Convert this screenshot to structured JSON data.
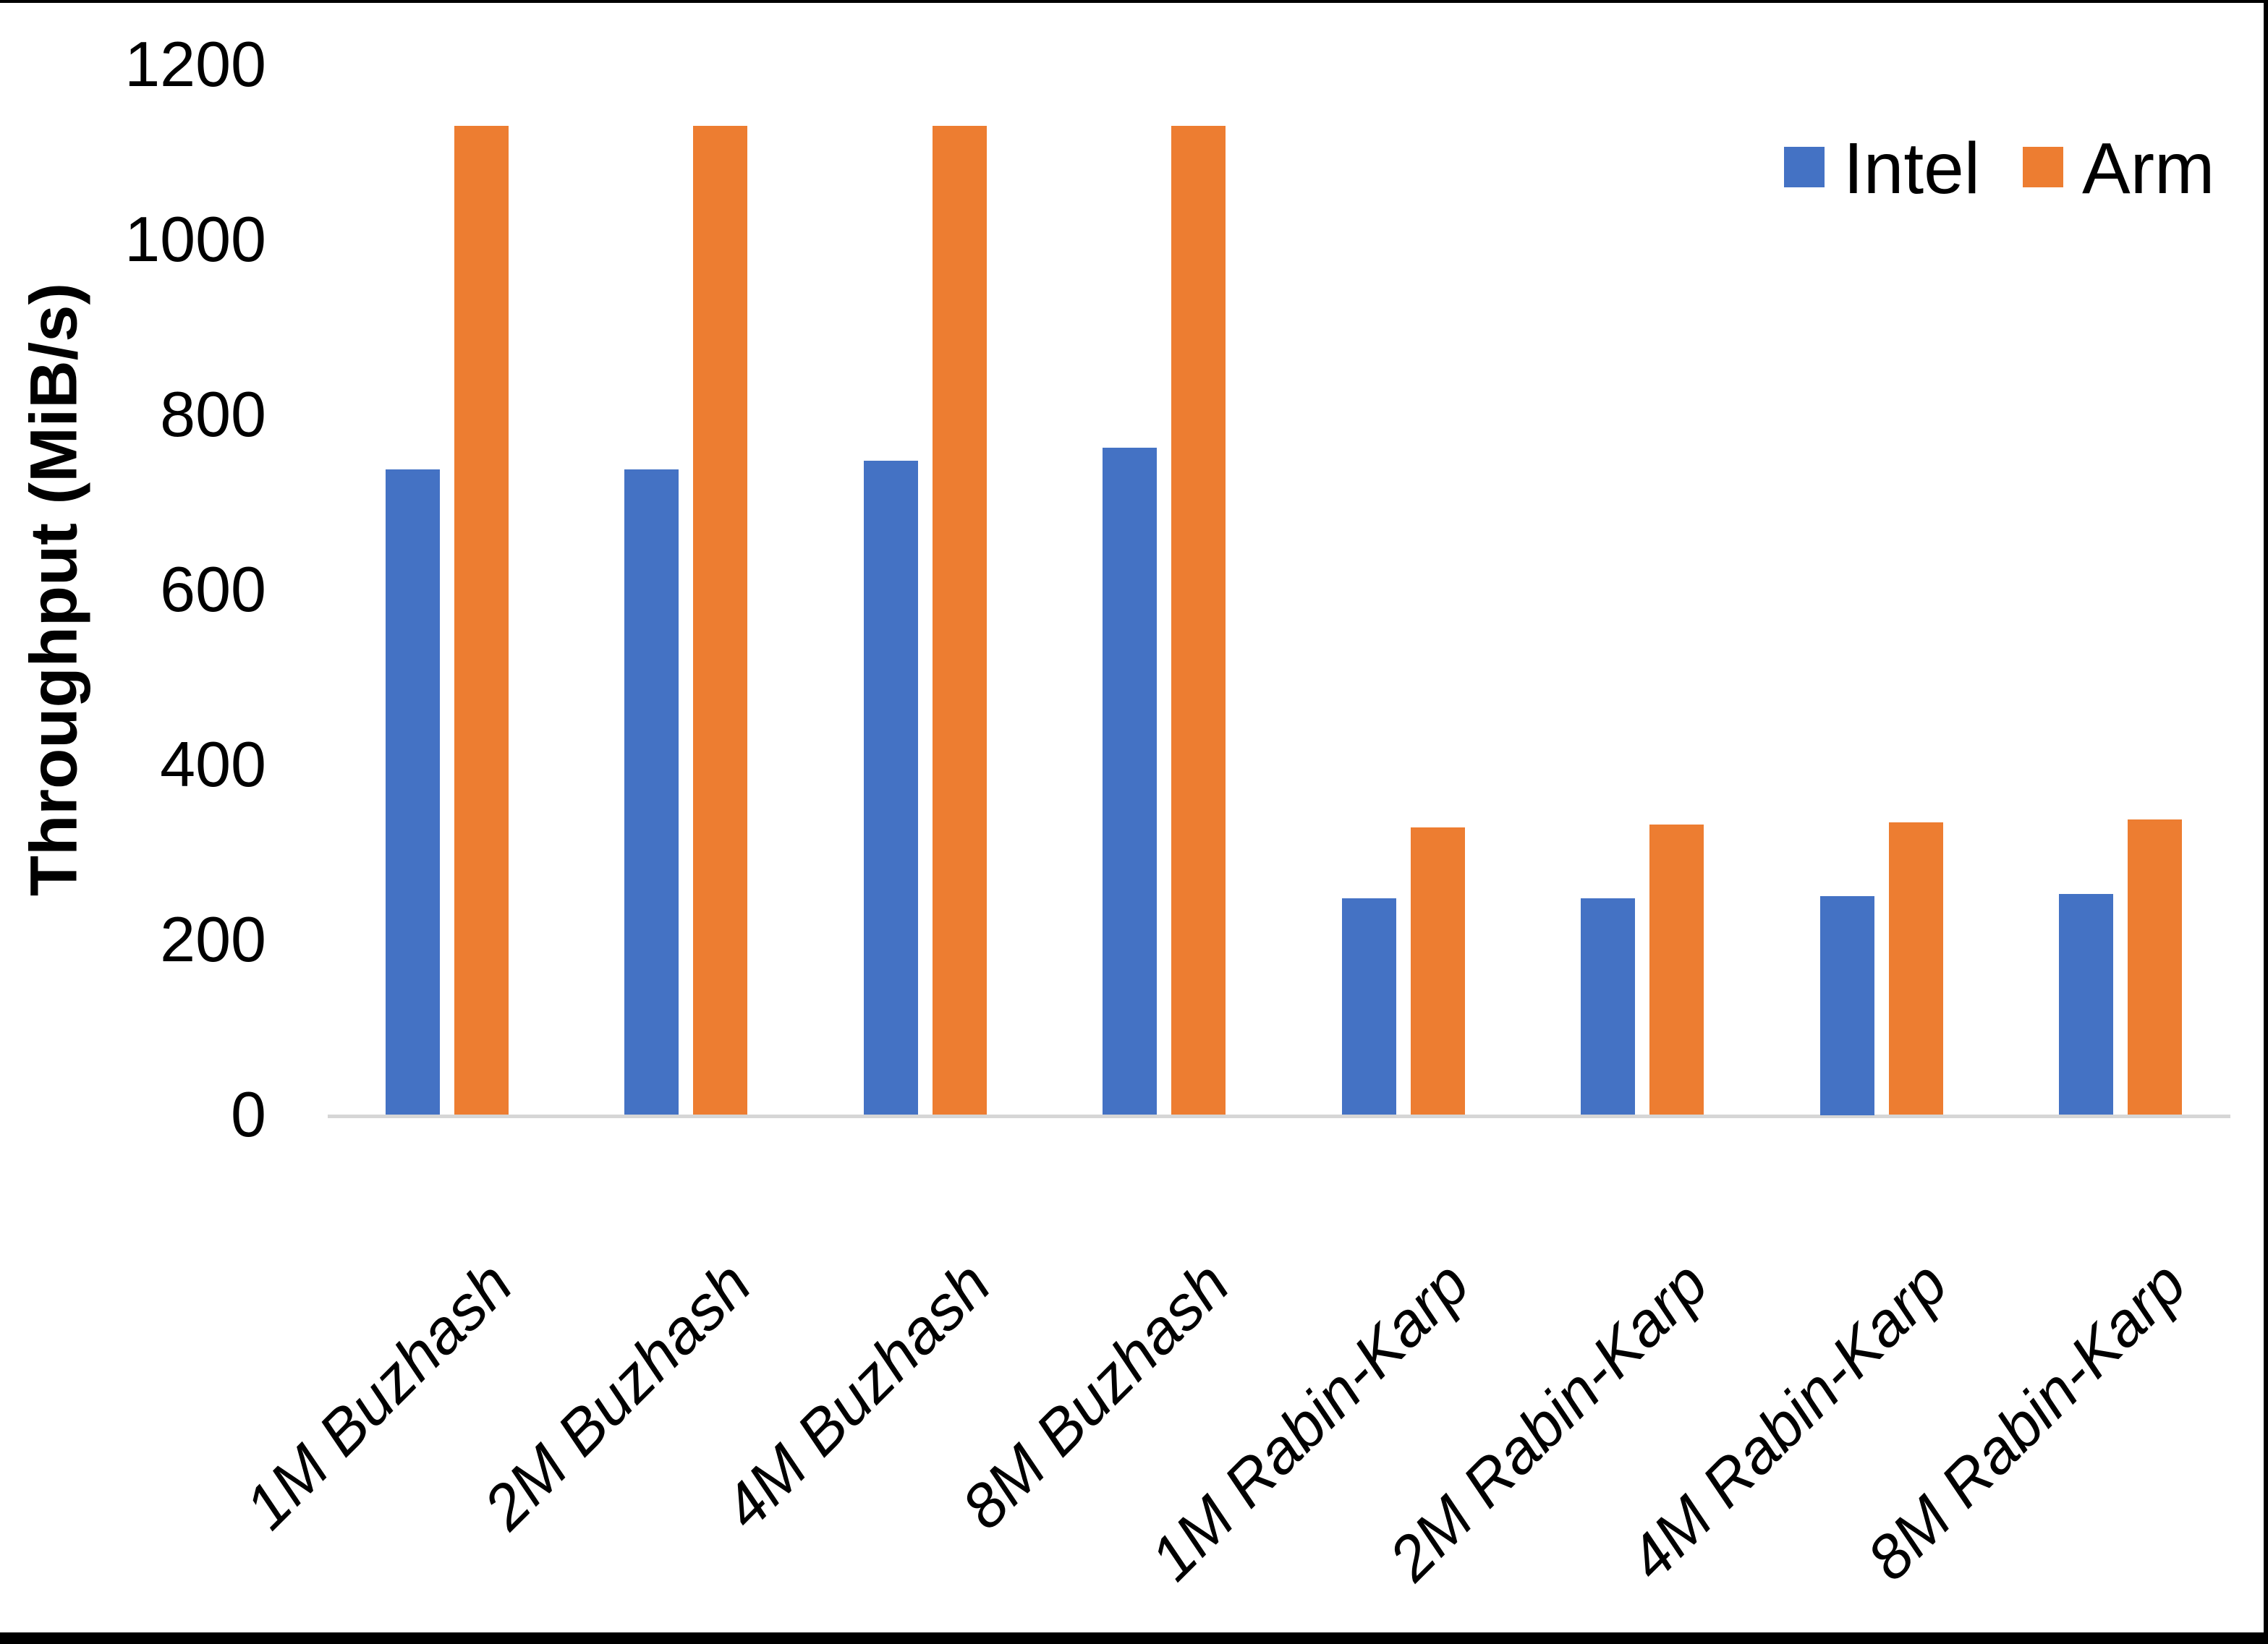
{
  "y_axis": {
    "title": "Throughput (MiB/s)"
  },
  "chart_data": {
    "type": "bar",
    "title": "",
    "xlabel": "",
    "ylabel": "Throughput (MiB/s)",
    "categories": [
      "1M Buzhash",
      "2M Buzhash",
      "4M Buzhash",
      "8M Buzhash",
      "1M Rabin-Karp",
      "2M Rabin-Karp",
      "4M Rabin-Karp",
      "8M Rabin-Karp"
    ],
    "series": [
      {
        "name": "Intel",
        "color": "#4472C4",
        "values": [
          737,
          737,
          747,
          762,
          247,
          247,
          250,
          252
        ]
      },
      {
        "name": "Arm",
        "color": "#ED7D31",
        "values": [
          1130,
          1130,
          1130,
          1130,
          328,
          331,
          334,
          337
        ]
      }
    ],
    "yticks": [
      0,
      200,
      400,
      600,
      800,
      1000,
      1200
    ],
    "ylim": [
      0,
      1200
    ],
    "grid": false,
    "legend_position": "top-right"
  }
}
